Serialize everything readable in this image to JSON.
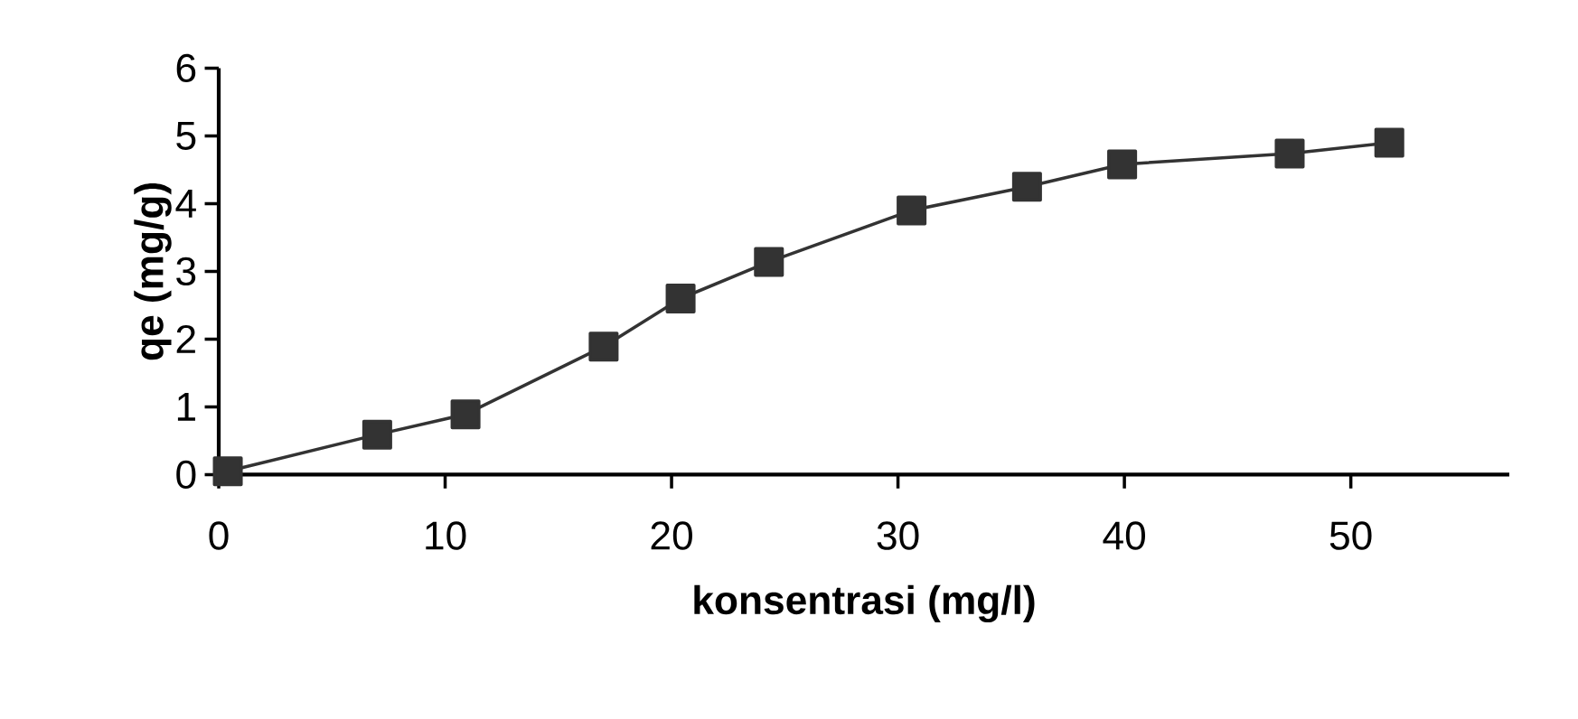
{
  "chart_data": {
    "type": "line",
    "xlabel": "konsentrasi (mg/l)",
    "ylabel": "qe (mg/g)",
    "x": [
      0.4,
      7.0,
      10.9,
      17.0,
      20.4,
      24.3,
      30.6,
      35.7,
      39.9,
      47.3,
      51.7
    ],
    "values": [
      0.05,
      0.59,
      0.89,
      1.89,
      2.6,
      3.14,
      3.9,
      4.25,
      4.58,
      4.74,
      4.9
    ],
    "color": "#333333",
    "marker": "square",
    "line_style": "solid",
    "xlim": [
      0,
      57
    ],
    "xticks": [
      0,
      10,
      20,
      30,
      40,
      50
    ],
    "ylim": [
      0,
      6
    ],
    "yticks": [
      0,
      1,
      2,
      3,
      4,
      5,
      6
    ],
    "grid": false
  }
}
